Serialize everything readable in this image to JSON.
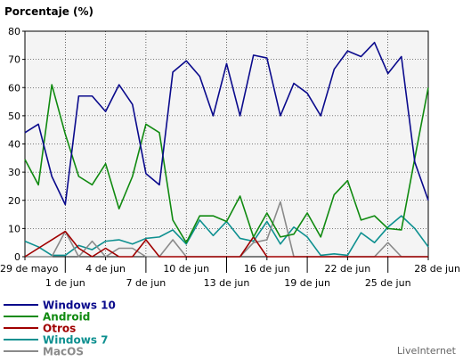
{
  "chart_data": {
    "type": "line",
    "title": "Porcentaje (%)",
    "ylim": [
      0,
      80
    ],
    "y_ticks": [
      0,
      10,
      20,
      30,
      40,
      50,
      60,
      70,
      80
    ],
    "grid": true,
    "x_tick_labels": [
      {
        "label": "29 de mayo",
        "index": 0,
        "row": 1
      },
      {
        "label": "1 de jun",
        "index": 3,
        "row": 2
      },
      {
        "label": "4 de jun",
        "index": 6,
        "row": 1
      },
      {
        "label": "7 de jun",
        "index": 9,
        "row": 2
      },
      {
        "label": "10 de jun",
        "index": 12,
        "row": 1
      },
      {
        "label": "13 de jun",
        "index": 15,
        "row": 2
      },
      {
        "label": "16 de jun",
        "index": 18,
        "row": 1
      },
      {
        "label": "19 de jun",
        "index": 21,
        "row": 2
      },
      {
        "label": "22 de jun",
        "index": 24,
        "row": 1
      },
      {
        "label": "25 de jun",
        "index": 27,
        "row": 2
      },
      {
        "label": "28 de jun",
        "index": 30,
        "row": 1
      }
    ],
    "series": [
      {
        "name": "Windows 10",
        "color": "#0a0a8c",
        "values": [
          44,
          47,
          28.5,
          18.5,
          57,
          57,
          51.5,
          61,
          54,
          29.5,
          25.5,
          65.5,
          69.5,
          64,
          50,
          68.5,
          50,
          71.5,
          70.5,
          50,
          61.5,
          58,
          50,
          66.5,
          73,
          71,
          76,
          65,
          71,
          33.5,
          20
        ]
      },
      {
        "name": "Android",
        "color": "#108a10",
        "values": [
          34.5,
          25.5,
          61,
          43.5,
          28.5,
          25.5,
          33,
          17,
          28.5,
          47,
          44,
          13,
          5,
          14.5,
          14.5,
          12.5,
          21.5,
          7,
          15.5,
          7,
          8,
          15.5,
          7,
          22,
          27,
          13,
          14.5,
          10,
          9.5,
          35,
          60
        ]
      },
      {
        "name": "Otros",
        "color": "#a00000",
        "values": [
          0,
          3,
          6,
          9,
          3,
          0,
          3,
          0,
          0,
          6,
          0,
          0,
          0,
          0,
          0,
          0,
          0,
          7,
          0,
          0,
          0,
          0,
          0,
          0,
          0,
          0,
          0,
          0,
          0,
          0,
          0
        ]
      },
      {
        "name": "Windows 7",
        "color": "#0e9090",
        "values": [
          5.5,
          3.5,
          0.5,
          0.5,
          4,
          2.5,
          5.5,
          6,
          4.5,
          6.5,
          7,
          9.5,
          4.5,
          13,
          7.5,
          12.5,
          6.5,
          5.5,
          12.5,
          4.5,
          10.5,
          7,
          0.5,
          1,
          0.5,
          8.5,
          5,
          10.5,
          14.5,
          10,
          3.5
        ]
      },
      {
        "name": "MacOS",
        "color": "#8a8a8a",
        "values": [
          0,
          0,
          0,
          9,
          0,
          5.5,
          0,
          3,
          3,
          0,
          0,
          6,
          0,
          0,
          0,
          0,
          0,
          5,
          6,
          19.5,
          0,
          0,
          0,
          0,
          0,
          0,
          0,
          5,
          0,
          0,
          0
        ]
      }
    ]
  },
  "branding": {
    "text": "LiveInternet"
  },
  "colors": {
    "plot_background": "#f4f4f4",
    "grid": "#000000",
    "axis": "#000000"
  }
}
